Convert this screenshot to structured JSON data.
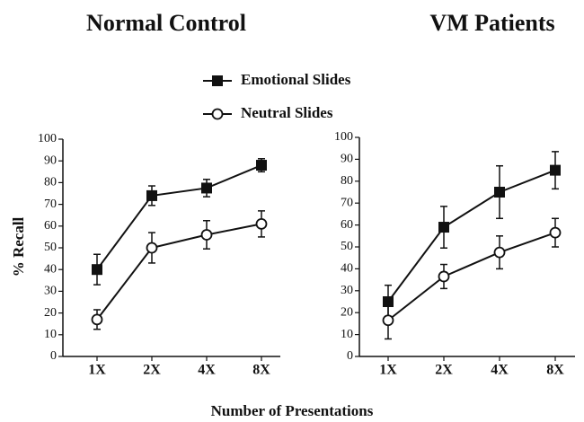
{
  "chart_data": [
    {
      "type": "line",
      "title": "Normal Control",
      "ylabel": "% Recall",
      "xlabel": "Number of Presentations",
      "categories": [
        "1X",
        "2X",
        "4X",
        "8X"
      ],
      "series": [
        {
          "name": "Emotional Slides",
          "color": "#111111",
          "marker": "square",
          "values": [
            40,
            74,
            77.5,
            88
          ],
          "errors": [
            7,
            4.5,
            4,
            3
          ]
        },
        {
          "name": "Neutral Slides",
          "color": "#111111",
          "marker": "circle",
          "values": [
            17,
            50,
            56,
            61
          ],
          "errors": [
            4.5,
            7,
            6.5,
            6
          ]
        }
      ],
      "ylim": [
        0,
        100
      ],
      "yticks": [
        0,
        10,
        20,
        30,
        40,
        50,
        60,
        70,
        80,
        90,
        100
      ]
    },
    {
      "type": "line",
      "title": "VM Patients",
      "categories": [
        "1X",
        "2X",
        "4X",
        "8X"
      ],
      "series": [
        {
          "name": "Emotional Slides",
          "color": "#111111",
          "marker": "square",
          "values": [
            25,
            59,
            75,
            85
          ],
          "errors": [
            7.5,
            9.5,
            12,
            8.5
          ]
        },
        {
          "name": "Neutral Slides",
          "color": "#111111",
          "marker": "circle",
          "values": [
            16.5,
            36.5,
            47.5,
            56.5
          ],
          "errors": [
            8.5,
            5.5,
            7.5,
            6.5
          ]
        }
      ],
      "ylim": [
        0,
        100
      ],
      "yticks": [
        0,
        10,
        20,
        30,
        40,
        50,
        60,
        70,
        80,
        90,
        100
      ]
    }
  ]
}
